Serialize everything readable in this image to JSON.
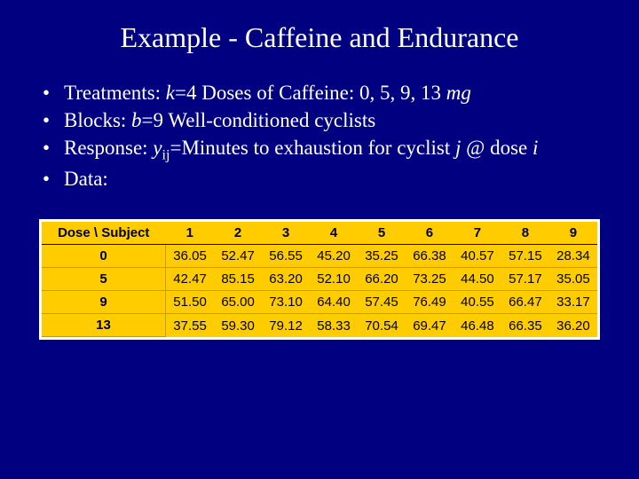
{
  "title": "Example - Caffeine and Endurance",
  "bullets": {
    "b1_pre": "Treatments: ",
    "b1_k": "k",
    "b1_mid": "=4 Doses of Caffeine: 0, 5, 9, 13 ",
    "b1_mg": "mg",
    "b2_pre": "Blocks: ",
    "b2_b": "b",
    "b2_post": "=9 Well-conditioned cyclists",
    "b3_pre": "Response: ",
    "b3_y": "y",
    "b3_ij": "ij",
    "b3_mid": "=Minutes to exhaustion for cyclist ",
    "b3_j": "j",
    "b3_at": " @ dose ",
    "b3_i": "i",
    "b4": "Data:"
  },
  "table": {
    "header_label": "Dose \\ Subject",
    "columns": [
      "1",
      "2",
      "3",
      "4",
      "5",
      "6",
      "7",
      "8",
      "9"
    ],
    "row_labels": [
      "0",
      "5",
      "9",
      "13"
    ],
    "rows": [
      [
        "36.05",
        "52.47",
        "56.55",
        "45.20",
        "35.25",
        "66.38",
        "40.57",
        "57.15",
        "28.34"
      ],
      [
        "42.47",
        "85.15",
        "63.20",
        "52.10",
        "66.20",
        "73.25",
        "44.50",
        "57.17",
        "35.05"
      ],
      [
        "51.50",
        "65.00",
        "73.10",
        "64.40",
        "57.45",
        "76.49",
        "40.55",
        "66.47",
        "33.17"
      ],
      [
        "37.55",
        "59.30",
        "79.12",
        "58.33",
        "70.54",
        "69.47",
        "46.48",
        "66.35",
        "36.20"
      ]
    ],
    "colors": {
      "slide_bg": "#000080",
      "table_bg": "#ffcc00",
      "text": "#ffffff",
      "table_text": "#000000"
    }
  }
}
